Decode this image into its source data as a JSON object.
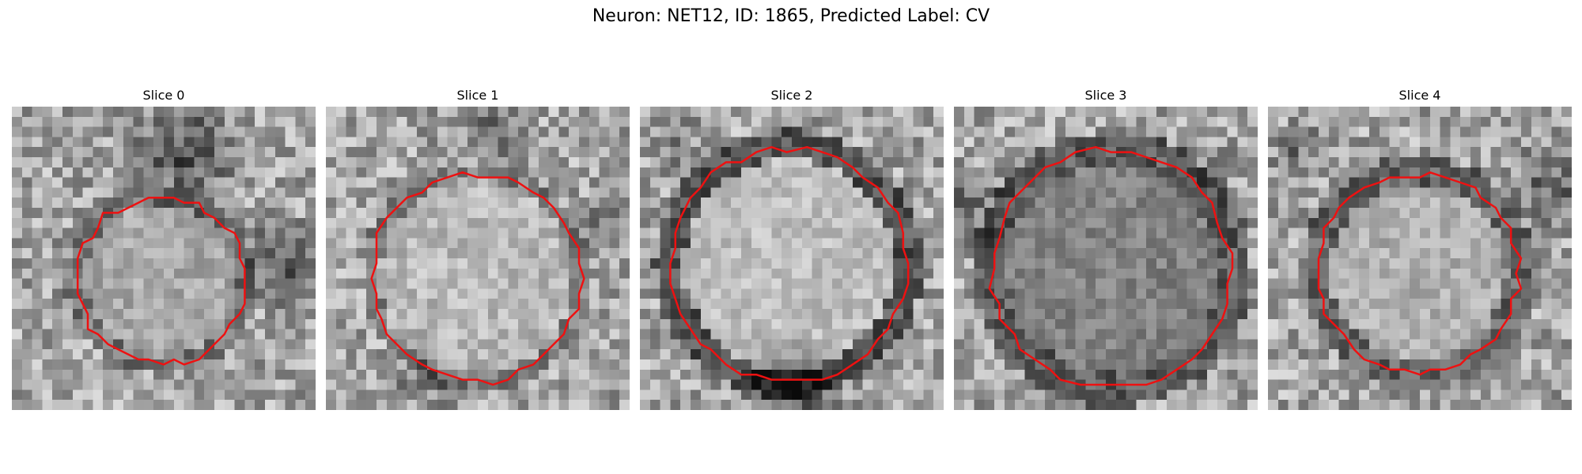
{
  "figure": {
    "title": "Neuron: NET12, ID: 1865, Predicted Label: CV"
  },
  "colors": {
    "contour": "#ee1111",
    "background": "#ffffff"
  },
  "panels": [
    {
      "title": "Slice 0",
      "seed": 11
    },
    {
      "title": "Slice 1",
      "seed": 23
    },
    {
      "title": "Slice 2",
      "seed": 37
    },
    {
      "title": "Slice 3",
      "seed": 41
    },
    {
      "title": "Slice 4",
      "seed": 59
    }
  ]
}
